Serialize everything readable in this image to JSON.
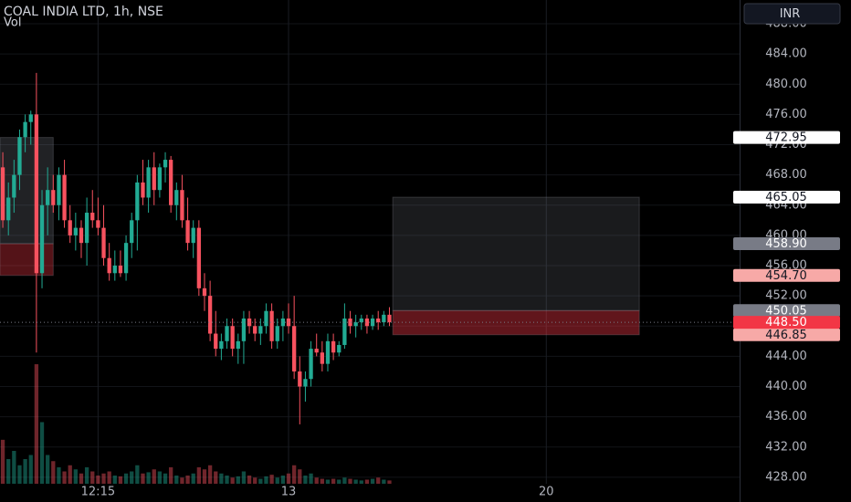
{
  "chart_data": {
    "type": "candlestick",
    "title": "COAL INDIA LTD, 1h, NSE",
    "volume_label": "Vol",
    "currency": "INR",
    "up_color": "#22ab94",
    "down_color": "#f7525f",
    "categories": [
      null,
      null,
      null,
      null,
      null,
      null,
      null,
      null,
      null,
      null,
      null,
      null,
      null,
      null,
      null,
      null,
      null,
      null,
      null,
      null,
      null,
      null,
      null,
      null,
      null,
      null,
      null,
      null,
      null,
      null,
      null,
      null,
      null,
      null,
      null,
      null,
      null,
      null,
      null,
      null,
      null,
      null,
      null,
      null,
      null,
      null,
      null,
      null,
      null,
      null,
      null,
      null,
      null,
      null,
      null,
      null,
      null,
      null,
      null,
      null,
      null,
      null,
      null,
      null,
      null,
      null,
      null,
      null,
      null,
      null
    ],
    "open": [
      469,
      462,
      465,
      468,
      473,
      475,
      476,
      455,
      464,
      466,
      464,
      468,
      462,
      460,
      461,
      459,
      463,
      462,
      461,
      457,
      455,
      456,
      455,
      459,
      462,
      467,
      465,
      469,
      466,
      469,
      470,
      464,
      466,
      462,
      459,
      461,
      453,
      452,
      447,
      445,
      446,
      448,
      445,
      446,
      449,
      448,
      447,
      448,
      450,
      446,
      448,
      449,
      448,
      442,
      440,
      441,
      445,
      444.5,
      443,
      446,
      444.5,
      445.5,
      449,
      448,
      448.5,
      449,
      448,
      449,
      448.5,
      449.5
    ],
    "high": [
      471,
      467,
      470,
      474,
      476,
      476.5,
      481.5,
      466,
      469,
      468,
      469,
      470,
      464,
      463,
      462,
      465,
      466,
      465,
      464,
      459,
      458,
      458,
      460,
      463,
      468,
      470,
      470,
      471,
      469.5,
      471,
      470.5,
      467,
      468,
      465,
      462,
      462,
      455,
      454,
      450,
      447,
      449,
      449,
      447,
      450,
      450,
      449,
      449,
      451,
      451,
      449,
      450,
      451,
      452,
      444,
      442,
      446,
      447,
      446,
      447,
      447,
      446,
      451,
      450,
      449.5,
      449.5,
      449.5,
      449.5,
      450,
      450,
      450.5
    ],
    "low": [
      461,
      460,
      463,
      466,
      471,
      472,
      444.5,
      453,
      460,
      463,
      462,
      461,
      459,
      458,
      457,
      456,
      461,
      460,
      456,
      454,
      454,
      454.5,
      454,
      457,
      458,
      464,
      463,
      464,
      465,
      467,
      463,
      462,
      461,
      458,
      457,
      452,
      450,
      446,
      444,
      443.5,
      445,
      444,
      443,
      443,
      447,
      446,
      445.5,
      447,
      445,
      445,
      446,
      447,
      441,
      435,
      438,
      440,
      444,
      442,
      442,
      443.5,
      444,
      445,
      447,
      446.5,
      447.5,
      447,
      447.5,
      447.5,
      448,
      448
    ],
    "close": [
      462,
      465,
      468,
      473,
      475,
      476,
      455,
      464,
      466,
      464,
      468,
      462,
      460,
      461,
      459,
      463,
      462,
      461,
      457,
      455,
      456,
      455,
      459,
      462,
      467,
      465,
      469,
      466,
      469,
      470,
      464,
      466,
      462,
      459,
      461,
      453,
      452,
      447,
      445,
      446,
      448,
      445,
      446,
      449,
      448,
      447,
      448,
      450,
      446,
      448,
      449,
      448,
      442,
      440,
      441,
      445,
      444.5,
      443,
      446,
      444.5,
      445.5,
      449,
      448,
      448.5,
      449,
      448,
      449,
      448.5,
      449.5,
      448.5
    ],
    "volume": [
      107,
      60,
      80,
      45,
      60,
      70,
      291,
      150,
      70,
      55,
      40,
      30,
      45,
      35,
      25,
      40,
      30,
      20,
      25,
      30,
      20,
      18,
      25,
      30,
      45,
      25,
      28,
      35,
      30,
      25,
      40,
      20,
      15,
      20,
      25,
      40,
      35,
      45,
      30,
      25,
      20,
      15,
      18,
      30,
      20,
      15,
      12,
      18,
      22,
      15,
      20,
      25,
      45,
      35,
      20,
      25,
      15,
      12,
      10,
      12,
      10,
      15,
      12,
      10,
      8,
      10,
      12,
      15,
      10,
      8
    ],
    "volume_ylim": [
      0,
      400
    ],
    "xlim": [
      -0.5,
      131.5
    ],
    "xticks": [
      {
        "value": 17,
        "label": "12:15"
      },
      {
        "value": 51,
        "label": "13"
      },
      {
        "value": 97,
        "label": "20"
      }
    ],
    "ylim": [
      427.14,
      491.14
    ],
    "yticks": [
      {
        "value": 428,
        "label": "428.00"
      },
      {
        "value": 432,
        "label": "432.00"
      },
      {
        "value": 436,
        "label": "436.00"
      },
      {
        "value": 440,
        "label": "440.00"
      },
      {
        "value": 444,
        "label": "444.00"
      },
      {
        "value": 448,
        "label": "448.00"
      },
      {
        "value": 452,
        "label": "452.00"
      },
      {
        "value": 456,
        "label": "456.00"
      },
      {
        "value": 460,
        "label": "460.00"
      },
      {
        "value": 464,
        "label": "464.00"
      },
      {
        "value": 468,
        "label": "468.00"
      },
      {
        "value": 472,
        "label": "472.00"
      },
      {
        "value": 476,
        "label": "476.00"
      },
      {
        "value": 480,
        "label": "480.00"
      },
      {
        "value": 484,
        "label": "484.00"
      },
      {
        "value": 488,
        "label": "488.00"
      }
    ],
    "grid": true,
    "zones": [
      {
        "xlim": [
          -0.5,
          9
        ],
        "ylim": [
          458.9,
          472.95
        ],
        "color": "rgba(120,123,134,0.28)"
      },
      {
        "xlim": [
          -0.5,
          9
        ],
        "ylim": [
          454.7,
          458.9
        ],
        "color": "rgba(242,54,69,0.35)"
      },
      {
        "xlim": [
          69.6,
          113.6
        ],
        "ylim": [
          450.05,
          465.05
        ],
        "color": "rgba(120,123,134,0.22)"
      },
      {
        "xlim": [
          69.6,
          113.6
        ],
        "ylim": [
          446.85,
          450.05
        ],
        "color": "rgba(242,54,69,0.4)"
      }
    ],
    "levels": [
      {
        "value": 472.95,
        "label": "472.95",
        "color": "#ffffff",
        "text_color": "#131722"
      },
      {
        "value": 465.05,
        "label": "465.05",
        "color": "#ffffff",
        "text_color": "#131722"
      },
      {
        "value": 458.9,
        "label": "458.90",
        "color": "#787b86",
        "text_color": "#ffffff"
      },
      {
        "value": 454.7,
        "label": "454.70",
        "color": "#f7a9a7",
        "text_color": "#131722"
      },
      {
        "value": 450.05,
        "label": "450.05",
        "color": "#787b86",
        "text_color": "#ffffff"
      },
      {
        "value": 446.85,
        "label": "446.85",
        "color": "#f7a9a7",
        "text_color": "#131722"
      },
      {
        "value": 448.5,
        "label": "448.50",
        "color": "#f23645",
        "text_color": "#ffffff",
        "line": true
      }
    ]
  }
}
